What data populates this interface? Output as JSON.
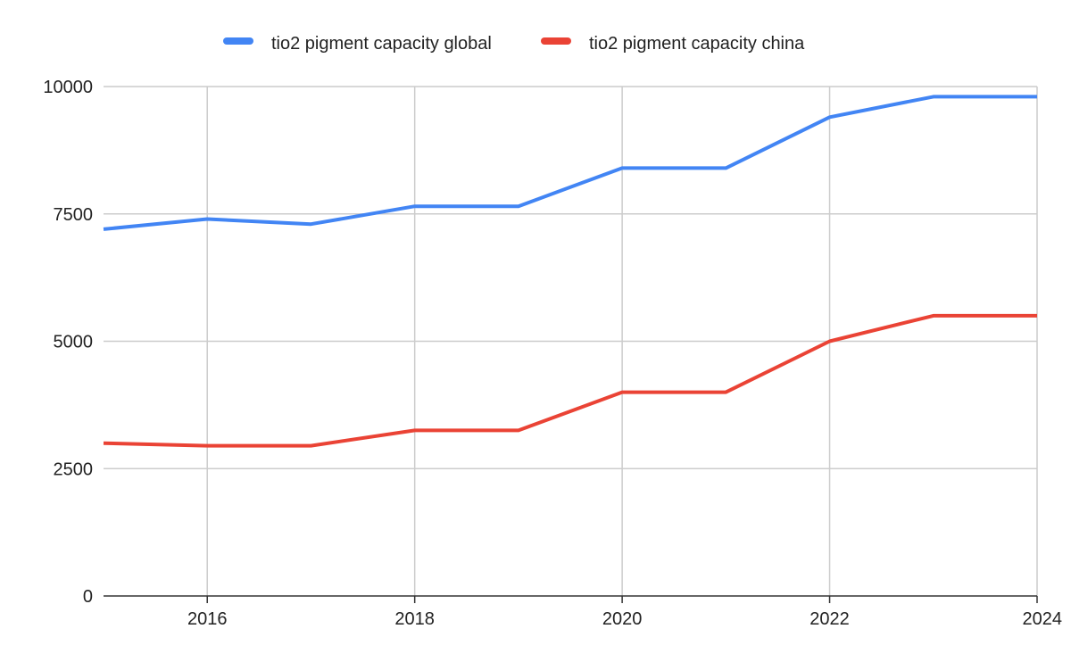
{
  "chart_data": {
    "type": "line",
    "title": "",
    "xlabel": "",
    "ylabel": "",
    "x": [
      2015,
      2016,
      2017,
      2018,
      2019,
      2020,
      2021,
      2022,
      2023,
      2024
    ],
    "xlim": [
      2015,
      2024
    ],
    "ylim": [
      0,
      10000
    ],
    "x_ticks": [
      2016,
      2018,
      2020,
      2022,
      2024
    ],
    "y_ticks": [
      0,
      2500,
      5000,
      7500,
      10000
    ],
    "x_tick_labels": [
      "2016",
      "2018",
      "2020",
      "2022",
      "2024"
    ],
    "y_tick_labels": [
      "0",
      "2500",
      "5000",
      "7500",
      "10000"
    ],
    "grid": true,
    "legend_position": "top-center",
    "series": [
      {
        "name": "tio2 pigment capacity global",
        "color": "#4285F4",
        "values": [
          7200,
          7400,
          7300,
          7650,
          7650,
          8400,
          8400,
          9400,
          9800,
          9800
        ]
      },
      {
        "name": "tio2 pigment capacity china",
        "color": "#EA4335",
        "values": [
          3000,
          2950,
          2950,
          3250,
          3250,
          4000,
          4000,
          5000,
          5500,
          5500
        ]
      }
    ]
  }
}
